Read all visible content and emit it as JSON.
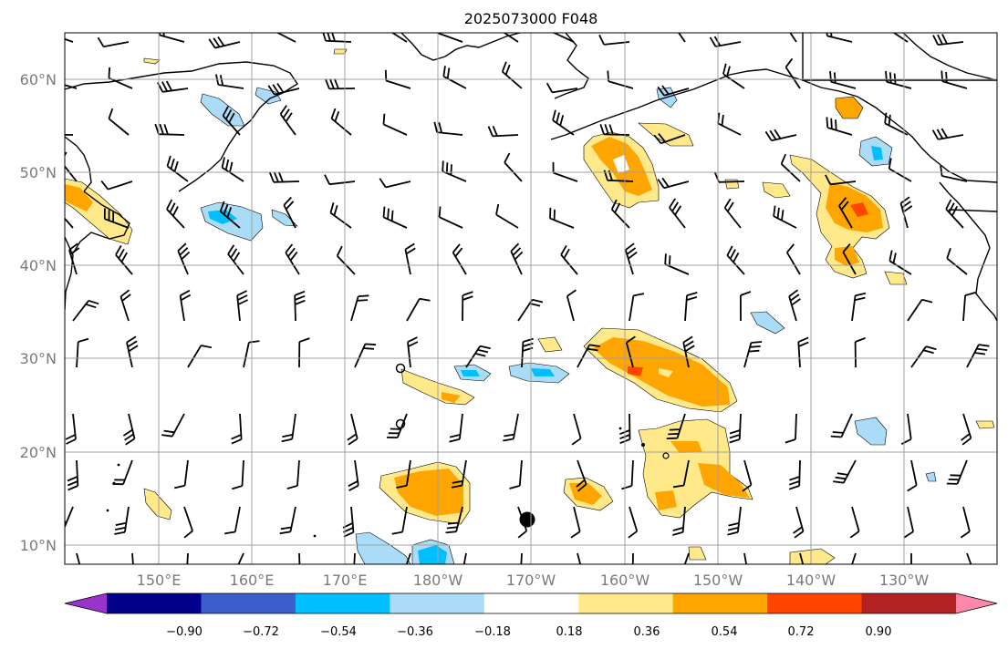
{
  "title": "2025073000 F048",
  "map": {
    "lat_labels": [
      "60°N",
      "50°N",
      "40°N",
      "30°N",
      "20°N",
      "10°N"
    ],
    "lon_labels": [
      "150°E",
      "160°E",
      "170°E",
      "180°W",
      "170°W",
      "160°W",
      "150°W",
      "140°W",
      "130°W"
    ],
    "fill_colors": {
      "pos_low": "#ffe98a",
      "pos_mid": "#ffa500",
      "pos_high": "#ff4500",
      "pos_top": "#b22222",
      "neg_low": "#aadcf7",
      "neg_mid": "#00bfff"
    }
  },
  "colorbar": {
    "labels": [
      "−0.90",
      "−0.72",
      "−0.54",
      "−0.36",
      "−0.18",
      "0.18",
      "0.36",
      "0.54",
      "0.72",
      "0.90"
    ],
    "colors": [
      "#9933cc",
      "#00008b",
      "#3a5fcd",
      "#00bfff",
      "#aadcf7",
      "#ffffff",
      "#ffe98a",
      "#ffa500",
      "#ff4500",
      "#b22222",
      "#ff88aa"
    ]
  }
}
